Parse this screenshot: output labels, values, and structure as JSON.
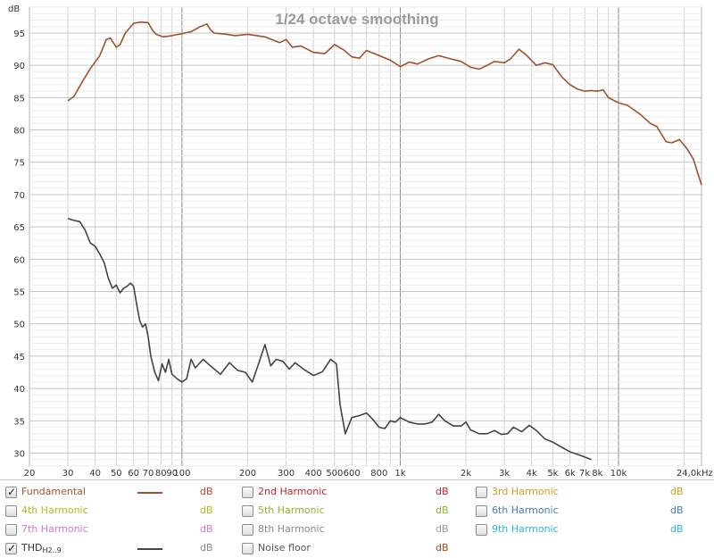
{
  "chart_data": {
    "type": "line",
    "title": "1/24 octave smoothing",
    "ylabel": "dB",
    "x_unit_label": "Hz",
    "x_scale": "log",
    "xlim": [
      20,
      24000
    ],
    "ylim": [
      28,
      99
    ],
    "x_ticks": [
      {
        "v": 20,
        "label": "20"
      },
      {
        "v": 30,
        "label": "30"
      },
      {
        "v": 40,
        "label": "40"
      },
      {
        "v": 50,
        "label": "50"
      },
      {
        "v": 60,
        "label": "60"
      },
      {
        "v": 70,
        "label": "70"
      },
      {
        "v": 80,
        "label": "80"
      },
      {
        "v": 90,
        "label": "90"
      },
      {
        "v": 100,
        "label": "100"
      },
      {
        "v": 200,
        "label": "200"
      },
      {
        "v": 300,
        "label": "300"
      },
      {
        "v": 400,
        "label": "400"
      },
      {
        "v": 500,
        "label": "500"
      },
      {
        "v": 600,
        "label": "600"
      },
      {
        "v": 800,
        "label": "800"
      },
      {
        "v": 1000,
        "label": "1k"
      },
      {
        "v": 2000,
        "label": "2k"
      },
      {
        "v": 3000,
        "label": "3k"
      },
      {
        "v": 4000,
        "label": "4k"
      },
      {
        "v": 5000,
        "label": "5k"
      },
      {
        "v": 6000,
        "label": "6k"
      },
      {
        "v": 7000,
        "label": "7k"
      },
      {
        "v": 8000,
        "label": "8k"
      },
      {
        "v": 10000,
        "label": "10k"
      },
      {
        "v": 24000,
        "label": "24,0k"
      }
    ],
    "y_ticks": [
      30,
      35,
      40,
      45,
      50,
      55,
      60,
      65,
      70,
      75,
      80,
      85,
      90,
      95
    ],
    "grid": true,
    "series": [
      {
        "name": "Fundamental",
        "color": "#a0522d",
        "points": [
          [
            30,
            84.5
          ],
          [
            32,
            85.2
          ],
          [
            35,
            87.5
          ],
          [
            38,
            89.5
          ],
          [
            42,
            91.5
          ],
          [
            45,
            94.0
          ],
          [
            47,
            94.2
          ],
          [
            50,
            92.8
          ],
          [
            52,
            93.2
          ],
          [
            55,
            95.0
          ],
          [
            60,
            96.5
          ],
          [
            65,
            96.7
          ],
          [
            70,
            96.6
          ],
          [
            73,
            95.5
          ],
          [
            76,
            94.8
          ],
          [
            82,
            94.4
          ],
          [
            90,
            94.6
          ],
          [
            100,
            94.9
          ],
          [
            110,
            95.2
          ],
          [
            120,
            95.9
          ],
          [
            130,
            96.4
          ],
          [
            135,
            95.5
          ],
          [
            140,
            95.0
          ],
          [
            160,
            94.8
          ],
          [
            175,
            94.6
          ],
          [
            200,
            94.8
          ],
          [
            240,
            94.4
          ],
          [
            280,
            93.5
          ],
          [
            300,
            94.0
          ],
          [
            320,
            92.8
          ],
          [
            350,
            93.0
          ],
          [
            400,
            92.0
          ],
          [
            450,
            91.8
          ],
          [
            500,
            93.2
          ],
          [
            550,
            92.4
          ],
          [
            600,
            91.3
          ],
          [
            650,
            91.1
          ],
          [
            700,
            92.3
          ],
          [
            800,
            91.5
          ],
          [
            900,
            90.8
          ],
          [
            1000,
            89.8
          ],
          [
            1100,
            90.5
          ],
          [
            1200,
            90.2
          ],
          [
            1350,
            91.0
          ],
          [
            1500,
            91.5
          ],
          [
            1700,
            91.0
          ],
          [
            1900,
            90.6
          ],
          [
            2100,
            89.7
          ],
          [
            2300,
            89.4
          ],
          [
            2500,
            90.0
          ],
          [
            2700,
            90.6
          ],
          [
            3000,
            90.4
          ],
          [
            3200,
            91.0
          ],
          [
            3500,
            92.5
          ],
          [
            3800,
            91.5
          ],
          [
            4200,
            90.0
          ],
          [
            4600,
            90.4
          ],
          [
            5000,
            90.1
          ],
          [
            5500,
            88.2
          ],
          [
            6000,
            87.0
          ],
          [
            6500,
            86.3
          ],
          [
            7000,
            86.0
          ],
          [
            7500,
            86.1
          ],
          [
            8000,
            86.0
          ],
          [
            8500,
            86.2
          ],
          [
            9000,
            85.0
          ],
          [
            10000,
            84.2
          ],
          [
            11000,
            83.8
          ],
          [
            12500,
            82.5
          ],
          [
            14000,
            81.0
          ],
          [
            15000,
            80.5
          ],
          [
            16500,
            78.2
          ],
          [
            17500,
            78.0
          ],
          [
            19000,
            78.5
          ],
          [
            20500,
            77.2
          ],
          [
            22000,
            75.5
          ],
          [
            24000,
            71.5
          ]
        ]
      },
      {
        "name": "THD H2..9",
        "color": "#444444",
        "points": [
          [
            30,
            66.3
          ],
          [
            32,
            66.0
          ],
          [
            34,
            65.8
          ],
          [
            36,
            64.5
          ],
          [
            38,
            62.5
          ],
          [
            40,
            62.0
          ],
          [
            42,
            60.8
          ],
          [
            44,
            59.5
          ],
          [
            46,
            57.0
          ],
          [
            48,
            55.5
          ],
          [
            50,
            56.0
          ],
          [
            52,
            54.8
          ],
          [
            54,
            55.5
          ],
          [
            56,
            55.8
          ],
          [
            58,
            56.3
          ],
          [
            60,
            55.8
          ],
          [
            62,
            53.0
          ],
          [
            64,
            50.5
          ],
          [
            66,
            49.5
          ],
          [
            68,
            50.0
          ],
          [
            70,
            48.0
          ],
          [
            72,
            45.0
          ],
          [
            75,
            42.5
          ],
          [
            78,
            41.2
          ],
          [
            81,
            43.8
          ],
          [
            84,
            42.5
          ],
          [
            87,
            44.5
          ],
          [
            90,
            42.2
          ],
          [
            95,
            41.5
          ],
          [
            100,
            41.0
          ],
          [
            105,
            41.5
          ],
          [
            110,
            44.5
          ],
          [
            115,
            43.2
          ],
          [
            125,
            44.5
          ],
          [
            135,
            43.5
          ],
          [
            150,
            42.2
          ],
          [
            165,
            44.0
          ],
          [
            180,
            42.8
          ],
          [
            195,
            42.5
          ],
          [
            210,
            41.0
          ],
          [
            225,
            44.0
          ],
          [
            240,
            46.8
          ],
          [
            255,
            43.5
          ],
          [
            270,
            44.5
          ],
          [
            290,
            44.2
          ],
          [
            310,
            43.0
          ],
          [
            330,
            44.0
          ],
          [
            360,
            43.0
          ],
          [
            400,
            42.0
          ],
          [
            440,
            42.6
          ],
          [
            480,
            44.5
          ],
          [
            510,
            43.8
          ],
          [
            530,
            37.5
          ],
          [
            560,
            33.0
          ],
          [
            600,
            35.5
          ],
          [
            650,
            35.8
          ],
          [
            700,
            36.2
          ],
          [
            750,
            35.2
          ],
          [
            800,
            34.0
          ],
          [
            850,
            33.8
          ],
          [
            900,
            35.0
          ],
          [
            950,
            34.8
          ],
          [
            1000,
            35.5
          ],
          [
            1100,
            34.8
          ],
          [
            1200,
            34.5
          ],
          [
            1300,
            34.5
          ],
          [
            1400,
            34.8
          ],
          [
            1500,
            36.0
          ],
          [
            1600,
            35.0
          ],
          [
            1750,
            34.2
          ],
          [
            1900,
            34.2
          ],
          [
            2000,
            34.8
          ],
          [
            2100,
            33.6
          ],
          [
            2300,
            33.0
          ],
          [
            2500,
            33.0
          ],
          [
            2700,
            33.5
          ],
          [
            2900,
            32.9
          ],
          [
            3100,
            33.0
          ],
          [
            3300,
            34.0
          ],
          [
            3600,
            33.3
          ],
          [
            3900,
            34.3
          ],
          [
            4200,
            33.5
          ],
          [
            4600,
            32.2
          ],
          [
            5000,
            31.7
          ],
          [
            5500,
            30.9
          ],
          [
            6000,
            30.2
          ],
          [
            6500,
            29.8
          ],
          [
            7000,
            29.4
          ],
          [
            7500,
            29.0
          ]
        ]
      }
    ]
  },
  "legend": {
    "items": [
      {
        "key": "fund",
        "label": "Fundamental",
        "checked": true,
        "has_line": true,
        "line_color": "#a0522d",
        "label_color": "#a0522d",
        "unit": "dB",
        "unit_color": "#c0442c"
      },
      {
        "key": "h2",
        "label": "2nd Harmonic",
        "checked": false,
        "has_line": false,
        "label_color": "#c0262c",
        "unit": "dB",
        "unit_color": "#c0262c"
      },
      {
        "key": "h3",
        "label": "3rd Harmonic",
        "checked": false,
        "has_line": false,
        "label_color": "#d49a1c",
        "unit": "dB",
        "unit_color": "#d49a1c"
      },
      {
        "key": "h4",
        "label": "4th Harmonic",
        "checked": false,
        "has_line": false,
        "label_color": "#b8b818",
        "unit": "dB",
        "unit_color": "#b8b818"
      },
      {
        "key": "h5",
        "label": "5th Harmonic",
        "checked": false,
        "has_line": false,
        "label_color": "#8ab82c",
        "unit": "dB",
        "unit_color": "#8ab82c"
      },
      {
        "key": "h6",
        "label": "6th Harmonic",
        "checked": false,
        "has_line": false,
        "label_color": "#4a78c8",
        "unit": "dB",
        "unit_color": "#4a78c8"
      },
      {
        "key": "h7",
        "label": "7th Harmonic",
        "checked": false,
        "has_line": false,
        "label_color": "#d878c8",
        "unit": "dB",
        "unit_color": "#d878c8"
      },
      {
        "key": "h8",
        "label": "8th Harmonic",
        "checked": false,
        "has_line": false,
        "label_color": "#888888",
        "unit": "dB",
        "unit_color": "#999999"
      },
      {
        "key": "h9",
        "label": "9th Harmonic",
        "checked": false,
        "has_line": false,
        "label_color": "#28b8d8",
        "unit": "dB",
        "unit_color": "#28b8d8"
      },
      {
        "key": "thd",
        "label": "THD",
        "label_sub": "H2..9",
        "checked": true,
        "has_line": true,
        "line_color": "#444444",
        "label_color": "#333333",
        "unit": "dB",
        "unit_color": "#888888"
      },
      {
        "key": "noise",
        "label": "Noise floor",
        "checked": false,
        "has_line": false,
        "label_color": "#555555",
        "unit": "dB",
        "unit_color": "#b04020"
      }
    ]
  }
}
